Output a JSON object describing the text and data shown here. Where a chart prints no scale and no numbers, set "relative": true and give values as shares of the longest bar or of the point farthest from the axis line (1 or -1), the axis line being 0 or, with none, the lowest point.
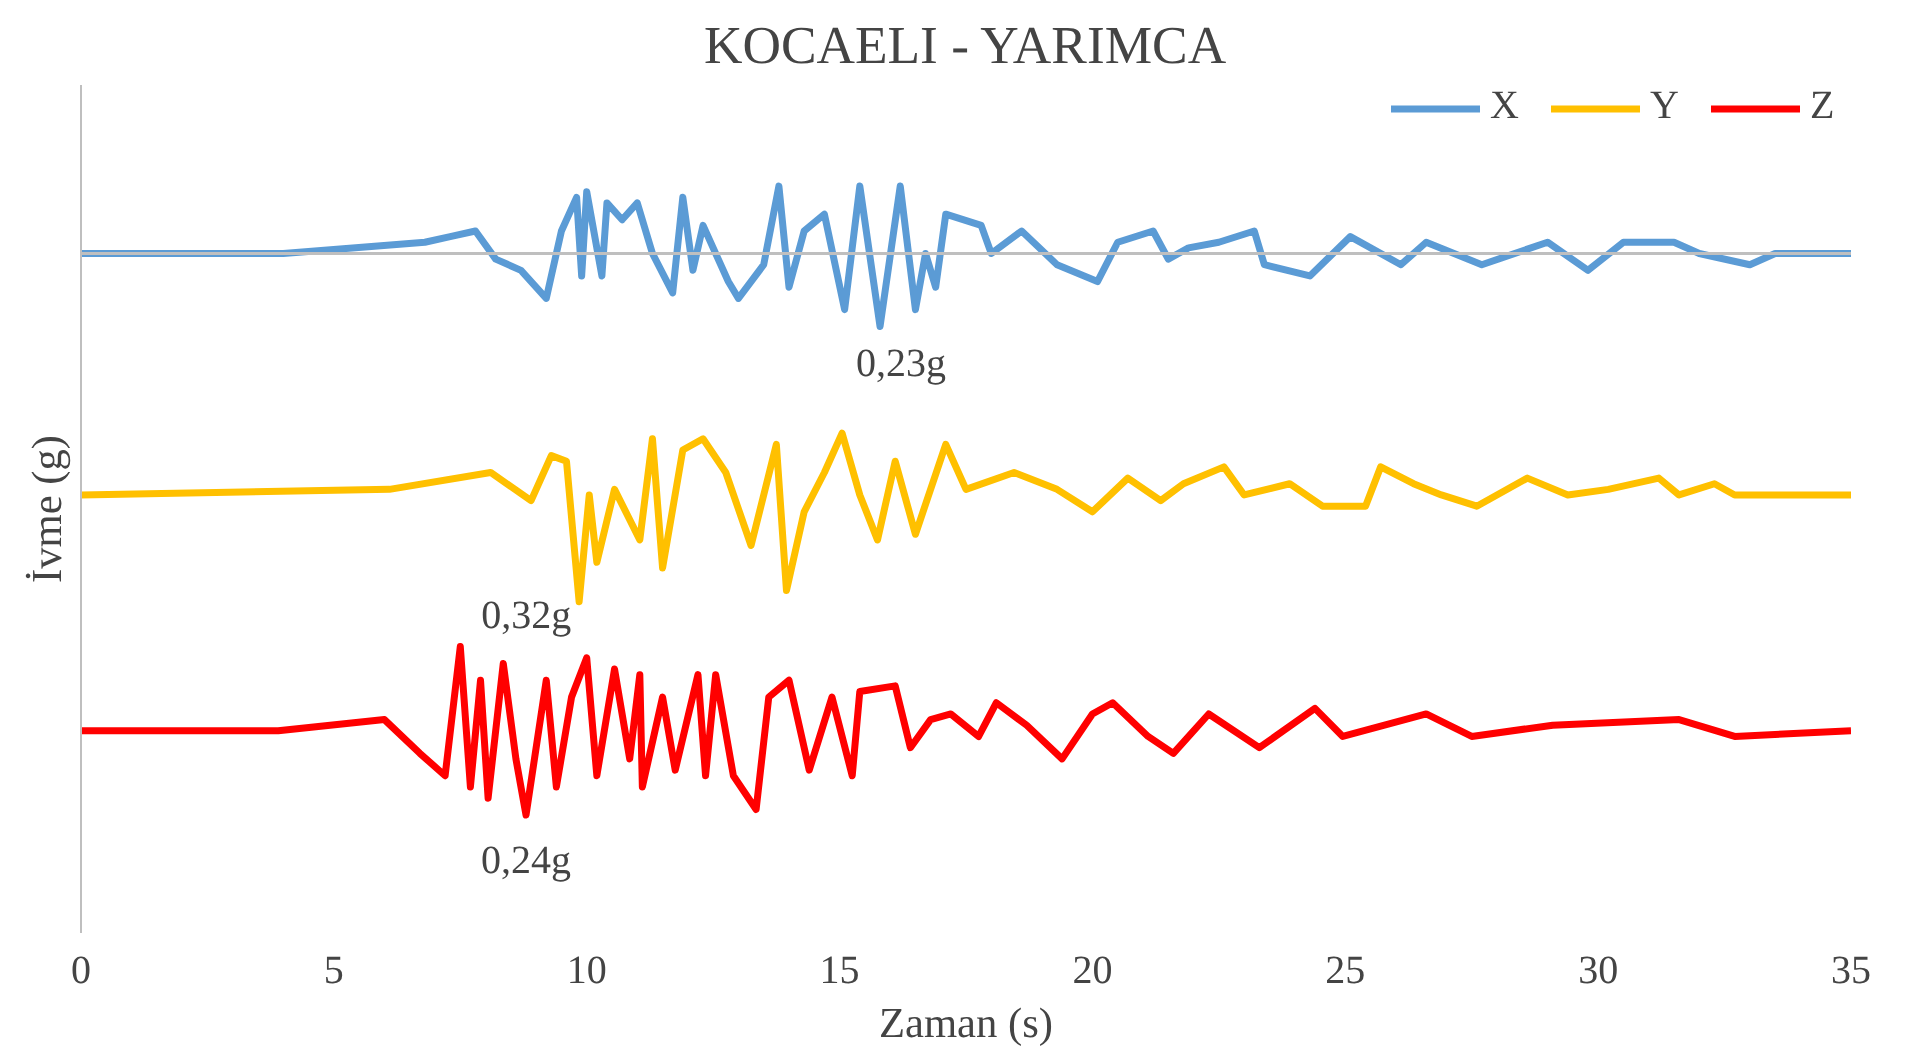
{
  "chart_data": {
    "type": "line",
    "title": "KOCAELI - YARIMCA",
    "xlabel": "Zaman (s)",
    "ylabel": "İvme (g)",
    "relative": true,
    "xlim": [
      0,
      35
    ],
    "xticks": [
      0,
      5,
      10,
      15,
      20,
      25,
      30,
      35
    ],
    "grid": false,
    "legend": "top right",
    "marker": "none",
    "line_style": "solid",
    "series": [
      {
        "name": "X",
        "color": "#5b9bd5",
        "x": [
          0,
          4,
          6.8,
          7.3,
          7.8,
          8.2,
          8.7,
          9.2,
          9.5,
          9.8,
          9.9,
          10.0,
          10.3,
          10.4,
          10.7,
          11.0,
          11.3,
          11.7,
          11.9,
          12.1,
          12.3,
          12.8,
          13.0,
          13.5,
          13.8,
          14.0,
          14.3,
          14.7,
          15.1,
          15.4,
          15.8,
          16.2,
          16.5,
          16.7,
          16.9,
          17.1,
          17.8,
          18.0,
          18.6,
          19.3,
          20.1,
          20.5,
          21.2,
          21.5,
          21.9,
          22.5,
          23.2,
          23.4,
          24.3,
          25.1,
          26.1,
          26.6,
          27.7,
          29.0,
          29.8,
          30.5,
          31.5,
          32.0,
          33.0,
          33.5,
          35
        ],
        "values": [
          0,
          0,
          0.02,
          0.03,
          0.04,
          -0.01,
          -0.03,
          -0.08,
          0.04,
          0.1,
          -0.04,
          0.11,
          -0.04,
          0.09,
          0.06,
          0.09,
          0,
          -0.07,
          0.1,
          -0.03,
          0.05,
          -0.05,
          -0.08,
          -0.02,
          0.12,
          -0.06,
          0.04,
          0.07,
          -0.1,
          0.12,
          -0.13,
          0.12,
          -0.1,
          0,
          -0.06,
          0.07,
          0.05,
          0,
          0.04,
          -0.02,
          -0.05,
          0.02,
          0.04,
          -0.01,
          0.01,
          0.02,
          0.04,
          -0.02,
          -0.04,
          0.03,
          -0.02,
          0.02,
          -0.02,
          0.02,
          -0.03,
          0.02,
          0.02,
          0,
          -0.02,
          0,
          0
        ]
      },
      {
        "name": "Y",
        "color": "#ffc000",
        "x": [
          0,
          6.1,
          8.1,
          8.9,
          9.3,
          9.6,
          9.85,
          10.05,
          10.2,
          10.55,
          11.05,
          11.3,
          11.5,
          11.9,
          12.3,
          12.75,
          13.25,
          13.75,
          13.95,
          14.3,
          14.7,
          15.05,
          15.4,
          15.75,
          16.1,
          16.5,
          17.1,
          17.5,
          18.45,
          19.3,
          20.0,
          20.7,
          21.35,
          21.8,
          22.6,
          23.0,
          23.9,
          24.55,
          25.4,
          25.7,
          26.35,
          26.9,
          27.6,
          28.6,
          29.4,
          30.2,
          31.2,
          31.6,
          32.3,
          32.7,
          33.4,
          35
        ],
        "values": [
          -0.43,
          -0.42,
          -0.39,
          -0.44,
          -0.36,
          -0.37,
          -0.62,
          -0.43,
          -0.55,
          -0.42,
          -0.51,
          -0.33,
          -0.56,
          -0.35,
          -0.33,
          -0.39,
          -0.52,
          -0.34,
          -0.6,
          -0.46,
          -0.39,
          -0.32,
          -0.43,
          -0.51,
          -0.37,
          -0.5,
          -0.34,
          -0.42,
          -0.39,
          -0.42,
          -0.46,
          -0.4,
          -0.44,
          -0.41,
          -0.38,
          -0.43,
          -0.41,
          -0.45,
          -0.45,
          -0.38,
          -0.41,
          -0.43,
          -0.45,
          -0.4,
          -0.43,
          -0.42,
          -0.4,
          -0.43,
          -0.41,
          -0.43,
          -0.43,
          -0.43
        ]
      },
      {
        "name": "Z",
        "color": "#ff0000",
        "x": [
          0,
          3.9,
          6.0,
          6.7,
          7.2,
          7.5,
          7.7,
          7.9,
          8.05,
          8.35,
          8.6,
          8.8,
          9.2,
          9.4,
          9.7,
          10.0,
          10.2,
          10.55,
          10.85,
          11.05,
          11.1,
          11.5,
          11.75,
          12.2,
          12.35,
          12.55,
          12.9,
          13.35,
          13.6,
          14.0,
          14.4,
          14.85,
          15.25,
          15.4,
          16.1,
          16.4,
          16.8,
          17.2,
          17.75,
          18.1,
          18.7,
          19.4,
          20.0,
          20.4,
          21.1,
          21.6,
          22.3,
          23.3,
          24.4,
          24.95,
          26.6,
          27.5,
          29.1,
          31.6,
          32.7,
          35
        ],
        "values": [
          -0.85,
          -0.85,
          -0.83,
          -0.89,
          -0.93,
          -0.7,
          -0.95,
          -0.76,
          -0.97,
          -0.73,
          -0.9,
          -1.0,
          -0.76,
          -0.95,
          -0.79,
          -0.72,
          -0.93,
          -0.74,
          -0.9,
          -0.75,
          -0.95,
          -0.79,
          -0.92,
          -0.75,
          -0.93,
          -0.75,
          -0.93,
          -0.99,
          -0.79,
          -0.76,
          -0.92,
          -0.79,
          -0.93,
          -0.78,
          -0.77,
          -0.88,
          -0.83,
          -0.82,
          -0.86,
          -0.8,
          -0.84,
          -0.9,
          -0.82,
          -0.8,
          -0.86,
          -0.89,
          -0.82,
          -0.88,
          -0.81,
          -0.86,
          -0.82,
          -0.86,
          -0.84,
          -0.83,
          -0.86,
          -0.85
        ]
      }
    ],
    "annotations": [
      {
        "text": "0,23g",
        "x": 15.8,
        "y": -0.13
      },
      {
        "text": "0,32g",
        "x": 9.85,
        "y": -0.62
      },
      {
        "text": "0,24g",
        "x": 8.8,
        "y": -1.0
      }
    ]
  }
}
